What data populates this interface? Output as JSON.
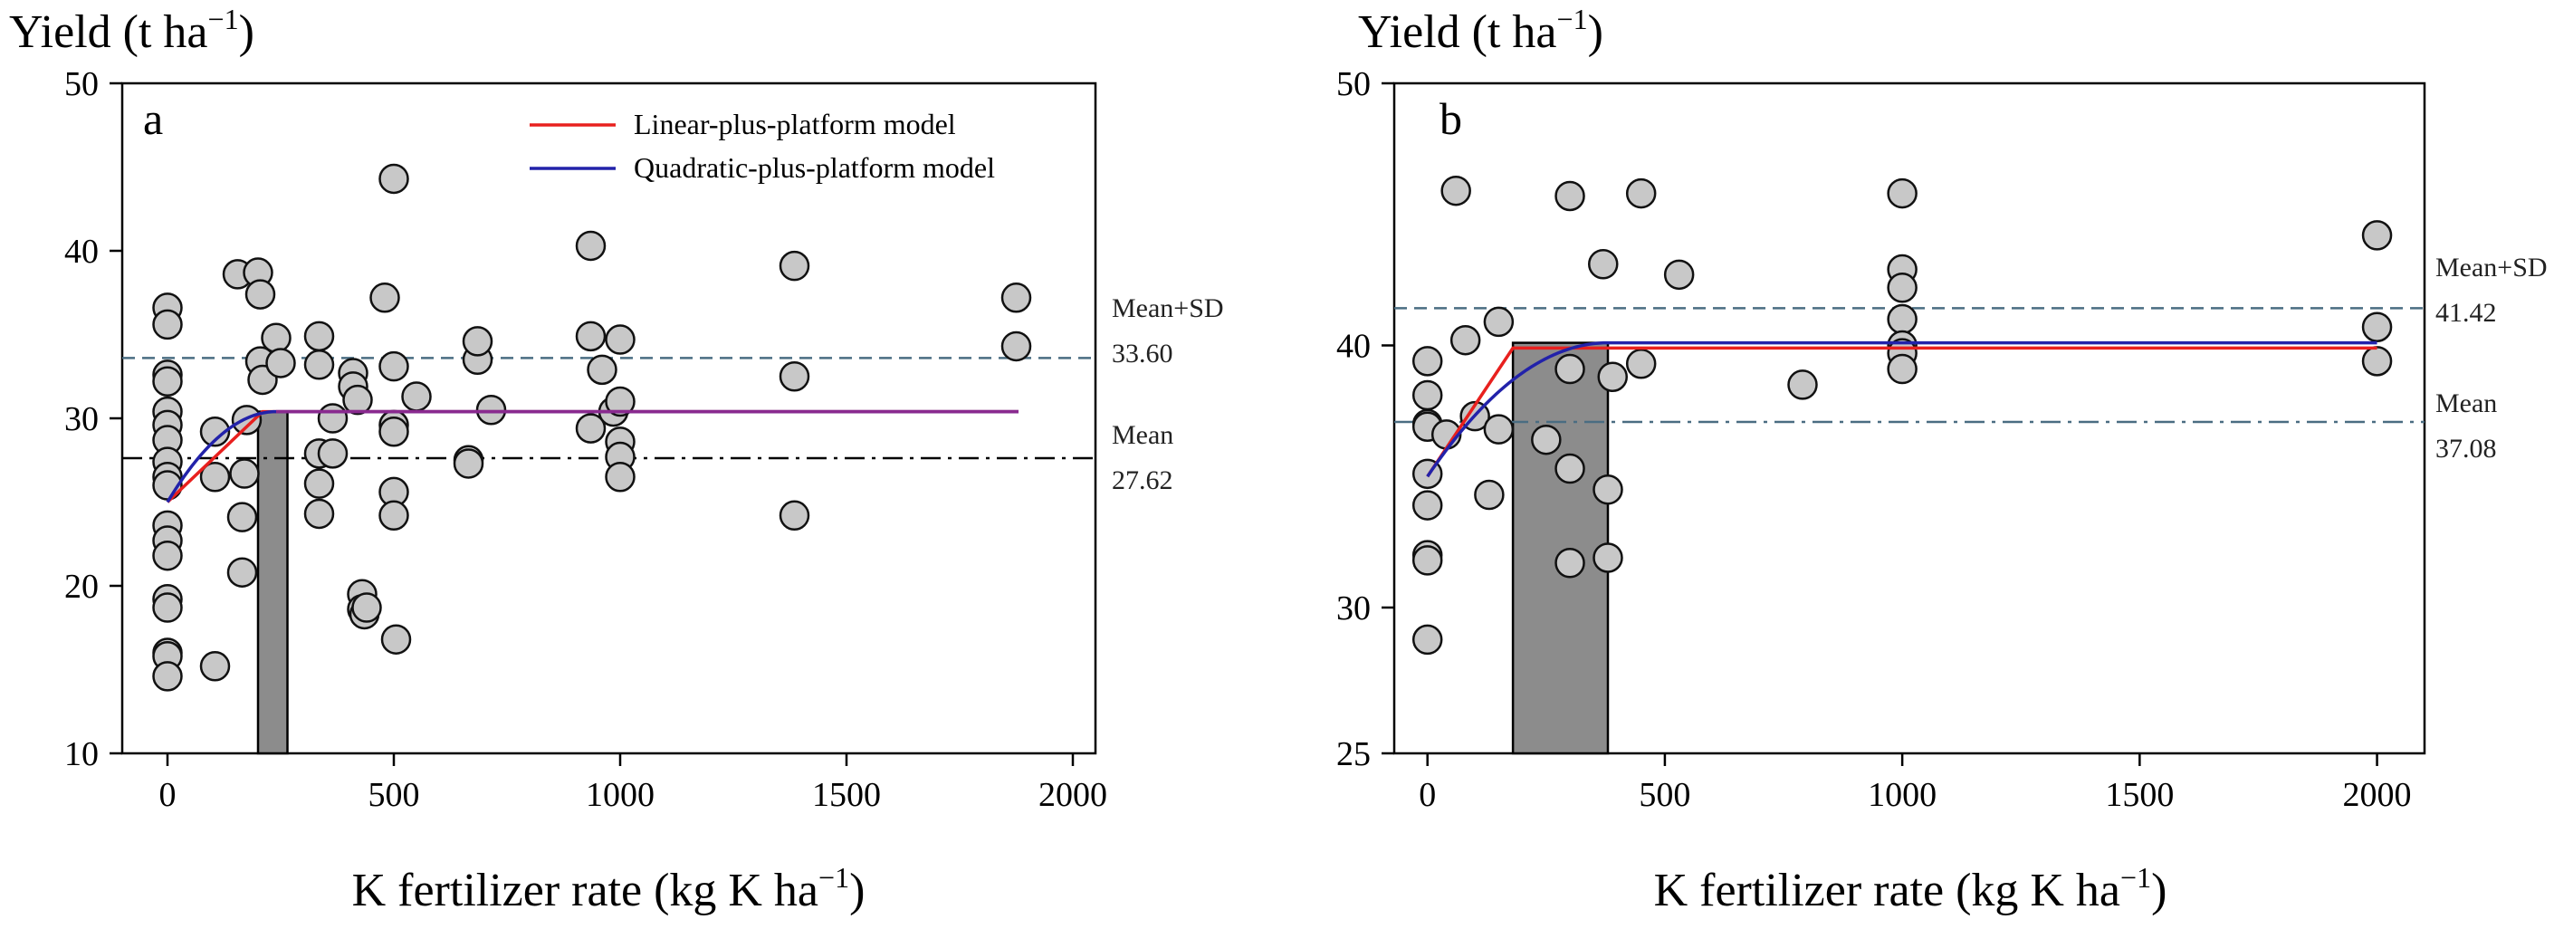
{
  "chart_data": [
    {
      "panel": "a",
      "type": "scatter",
      "ylabel_main": "Yield (t ha",
      "ylabel_sup": "−1",
      "ylabel_end": ")",
      "xlabel_main": "K fertilizer rate (kg K ha",
      "xlabel_sup": "−1",
      "xlabel_end": ")",
      "xlim": [
        -100,
        2050
      ],
      "ylim": [
        10,
        50
      ],
      "xticks": [
        0,
        500,
        1000,
        1500,
        2000
      ],
      "yticks": [
        10,
        20,
        30,
        40,
        50
      ],
      "legend": [
        {
          "label": "Linear-plus-platform model",
          "color": "#e8201e"
        },
        {
          "label": "Quadratic-plus-platform model",
          "color": "#2222aa"
        }
      ],
      "reference_lines": [
        {
          "name": "Mean+SD",
          "value_label": "33.60",
          "y": 33.6,
          "style": "dashed",
          "color": "#4a6d82"
        },
        {
          "name": "Mean",
          "value_label": "27.62",
          "y": 27.62,
          "style": "dashdot",
          "color": "#000000"
        }
      ],
      "optimum_band": {
        "x0": 200,
        "x1": 265
      },
      "linear_model": [
        [
          0,
          25.0
        ],
        [
          210,
          30.4
        ],
        [
          1880,
          30.4
        ]
      ],
      "quadratic_model": {
        "x0": 0,
        "y0": 25.0,
        "x_plateau": 240,
        "y_plateau": 30.4,
        "x_end": 1880
      },
      "points": [
        [
          0,
          36.6
        ],
        [
          0,
          35.6
        ],
        [
          0,
          32.6
        ],
        [
          0,
          32.2
        ],
        [
          0,
          30.4
        ],
        [
          0,
          29.6
        ],
        [
          0,
          28.7
        ],
        [
          0,
          27.4
        ],
        [
          0,
          26.5
        ],
        [
          0,
          26
        ],
        [
          0,
          23.6
        ],
        [
          0,
          22.7
        ],
        [
          0,
          21.8
        ],
        [
          0,
          19.2
        ],
        [
          0,
          18.7
        ],
        [
          0,
          16
        ],
        [
          0,
          15.8
        ],
        [
          0,
          14.6
        ],
        [
          105,
          29.2
        ],
        [
          105,
          26.5
        ],
        [
          105,
          15.2
        ],
        [
          155,
          38.6
        ],
        [
          165,
          24.1
        ],
        [
          165,
          20.8
        ],
        [
          170,
          26.7
        ],
        [
          175,
          29.9
        ],
        [
          200,
          38.7
        ],
        [
          205,
          37.4
        ],
        [
          205,
          33.4
        ],
        [
          210,
          32.3
        ],
        [
          240,
          34.8
        ],
        [
          250,
          33.3
        ],
        [
          335,
          34.9
        ],
        [
          335,
          33.2
        ],
        [
          335,
          27.9
        ],
        [
          335,
          26.1
        ],
        [
          335,
          24.3
        ],
        [
          365,
          30
        ],
        [
          365,
          27.9
        ],
        [
          410,
          32.7
        ],
        [
          410,
          31.9
        ],
        [
          420,
          31.1
        ],
        [
          430,
          19.5
        ],
        [
          430,
          18.6
        ],
        [
          435,
          18.3
        ],
        [
          440,
          18.7
        ],
        [
          480,
          37.2
        ],
        [
          500,
          44.3
        ],
        [
          500,
          33.1
        ],
        [
          500,
          29.6
        ],
        [
          500,
          29.2
        ],
        [
          500,
          25.6
        ],
        [
          500,
          24.2
        ],
        [
          505,
          16.8
        ],
        [
          550,
          31.3
        ],
        [
          665,
          27.5
        ],
        [
          665,
          27.3
        ],
        [
          685,
          33.5
        ],
        [
          685,
          34.6
        ],
        [
          715,
          30.5
        ],
        [
          935,
          40.3
        ],
        [
          935,
          34.9
        ],
        [
          935,
          29.4
        ],
        [
          960,
          32.9
        ],
        [
          985,
          30.4
        ],
        [
          1000,
          34.7
        ],
        [
          1000,
          31
        ],
        [
          1000,
          28.6
        ],
        [
          1000,
          27.7
        ],
        [
          1000,
          26.5
        ],
        [
          1385,
          39.1
        ],
        [
          1385,
          32.5
        ],
        [
          1385,
          24.2
        ],
        [
          1875,
          37.2
        ],
        [
          1875,
          34.3
        ]
      ],
      "x_axis_values_note": "K rate values in kg K ha-1; yields in t ha-1"
    },
    {
      "panel": "b",
      "type": "scatter",
      "ylabel_main": "Yield (t ha",
      "ylabel_sup": "−1",
      "ylabel_end": ")",
      "xlabel_main": "K fertilizer rate (kg K ha",
      "xlabel_sup": "−1",
      "xlabel_end": ")",
      "xlim": [
        -70,
        2100
      ],
      "ylim": [
        25,
        50
      ],
      "xticks": [
        0,
        500,
        1000,
        1500,
        2000
      ],
      "yticks": [
        25,
        30,
        40,
        50
      ],
      "y_scale_note": "non-linear axis: 25 to 30 compressed",
      "reference_lines": [
        {
          "name": "Mean+SD",
          "value_label": "41.42",
          "y": 41.42,
          "style": "dashed",
          "color": "#4a6d82"
        },
        {
          "name": "Mean",
          "value_label": "37.08",
          "y": 37.08,
          "style": "dashdot",
          "color": "#4a6d82"
        }
      ],
      "optimum_band": {
        "x0": 180,
        "x1": 380
      },
      "linear_model": [
        [
          0,
          35.0
        ],
        [
          180,
          39.9
        ],
        [
          2000,
          39.9
        ]
      ],
      "quadratic_model": {
        "x0": 0,
        "y0": 35.0,
        "x_plateau": 380,
        "y_plateau": 40.1,
        "x_end": 2000
      },
      "points": [
        [
          0,
          39.4
        ],
        [
          0,
          38.1
        ],
        [
          0,
          37
        ],
        [
          0,
          36.9
        ],
        [
          0,
          35.1
        ],
        [
          0,
          33.9
        ],
        [
          0,
          32
        ],
        [
          0,
          31.8
        ],
        [
          0,
          28.9
        ],
        [
          40,
          36.6
        ],
        [
          60,
          45.9
        ],
        [
          80,
          40.2
        ],
        [
          100,
          37.3
        ],
        [
          130,
          34.3
        ],
        [
          150,
          40.9
        ],
        [
          150,
          36.8
        ],
        [
          250,
          36.4
        ],
        [
          300,
          45.7
        ],
        [
          300,
          39.1
        ],
        [
          300,
          35.3
        ],
        [
          300,
          31.7
        ],
        [
          370,
          43.1
        ],
        [
          380,
          34.5
        ],
        [
          380,
          31.9
        ],
        [
          390,
          38.8
        ],
        [
          450,
          45.8
        ],
        [
          450,
          39.3
        ],
        [
          530,
          42.7
        ],
        [
          790,
          38.5
        ],
        [
          1000,
          45.8
        ],
        [
          1000,
          42.9
        ],
        [
          1000,
          42.2
        ],
        [
          1000,
          41
        ],
        [
          1000,
          40
        ],
        [
          1000,
          39.7
        ],
        [
          1000,
          39.1
        ],
        [
          2000,
          44.2
        ],
        [
          2000,
          40.7
        ],
        [
          2000,
          39.4
        ]
      ]
    }
  ]
}
